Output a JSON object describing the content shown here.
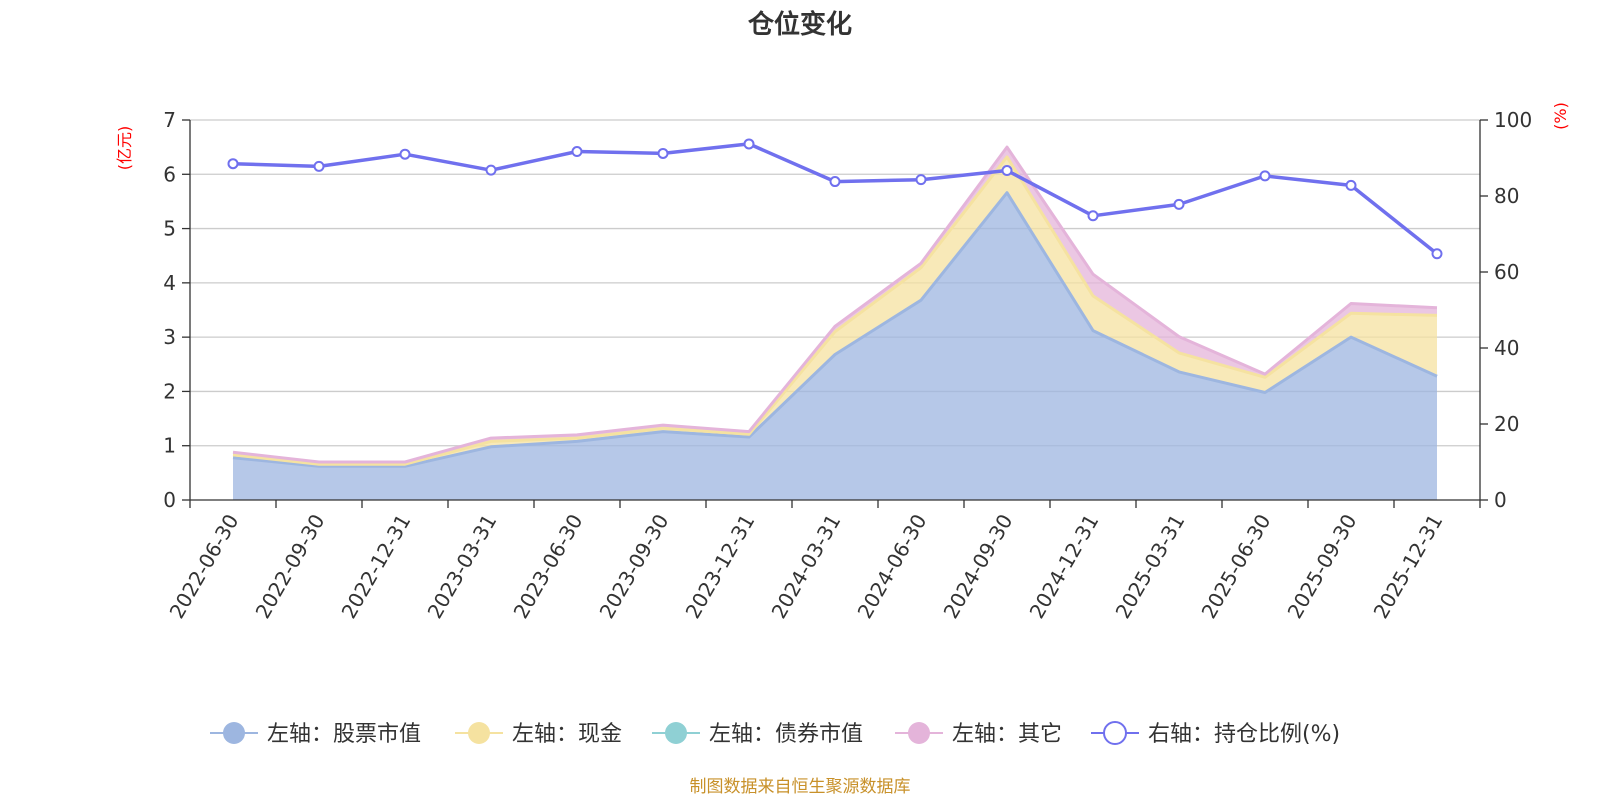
{
  "chart_data": {
    "type": "area",
    "title": "仓位变化",
    "left_axis": {
      "unit": "(亿元)",
      "ylim": [
        0,
        7
      ],
      "ticks": [
        0,
        1,
        2,
        3,
        4,
        5,
        6,
        7
      ]
    },
    "right_axis": {
      "unit": "(%)",
      "ylim": [
        0,
        100
      ],
      "ticks": [
        0,
        20,
        40,
        60,
        80,
        100
      ]
    },
    "categories": [
      "2022-06-30",
      "2022-09-30",
      "2022-12-31",
      "2023-03-31",
      "2023-06-30",
      "2023-09-30",
      "2023-12-31",
      "2024-03-31",
      "2024-06-30",
      "2024-09-30",
      "2024-12-31",
      "2025-03-31",
      "2025-06-30",
      "2025-09-30",
      "2025-12-31"
    ],
    "series": [
      {
        "name": "左轴：股票市值",
        "axis": "left",
        "color": "#9db6e0",
        "stack": true,
        "values": [
          0.78,
          0.62,
          0.62,
          0.98,
          1.08,
          1.26,
          1.16,
          2.68,
          3.68,
          5.66,
          3.12,
          2.36,
          1.98,
          3.0,
          2.28
        ]
      },
      {
        "name": "左轴：现金",
        "axis": "left",
        "color": "#f5e2a0",
        "stack": true,
        "values": [
          0.05,
          0.04,
          0.04,
          0.1,
          0.06,
          0.06,
          0.05,
          0.42,
          0.6,
          0.66,
          0.64,
          0.35,
          0.28,
          0.44,
          1.12
        ]
      },
      {
        "name": "左轴：债券市值",
        "axis": "left",
        "color": "#8fd0d4",
        "stack": true,
        "values": [
          0,
          0,
          0,
          0,
          0,
          0,
          0,
          0,
          0,
          0,
          0,
          0,
          0,
          0,
          0
        ]
      },
      {
        "name": "左轴：其它",
        "axis": "left",
        "color": "#e4b4da",
        "stack": true,
        "values": [
          0.05,
          0.04,
          0.04,
          0.06,
          0.06,
          0.06,
          0.05,
          0.1,
          0.08,
          0.18,
          0.4,
          0.3,
          0.06,
          0.18,
          0.14
        ]
      },
      {
        "name": "右轴：持仓比例(%)",
        "axis": "right",
        "color": "#7070ee",
        "type": "line",
        "values": [
          88.5,
          87.8,
          91.0,
          86.8,
          91.7,
          91.2,
          93.7,
          83.8,
          84.3,
          86.7,
          74.8,
          77.8,
          85.3,
          82.8,
          64.8
        ]
      }
    ]
  },
  "credit": "制图数据来自恒生聚源数据库"
}
